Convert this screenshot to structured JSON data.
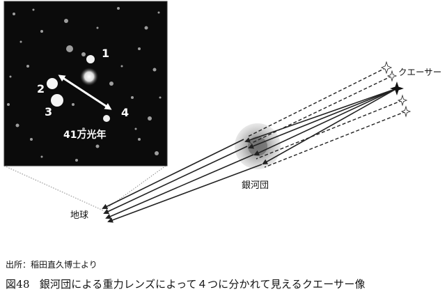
{
  "photo": {
    "image_labels": [
      "1",
      "2",
      "3",
      "4"
    ],
    "scale_label": "41万光年"
  },
  "diagram": {
    "earth_label": "地球",
    "cluster_label": "銀河団",
    "quasar_label": "クエーサー"
  },
  "source": "出所：稲田直久博士より",
  "caption": {
    "number": "図48",
    "text": "銀河団による重力レンズによって４つに分かれて見えるクエーサー像"
  },
  "colors": {
    "photo_background": "#0a0a0a",
    "line": "#222222",
    "halo": "#bdbdbd"
  }
}
